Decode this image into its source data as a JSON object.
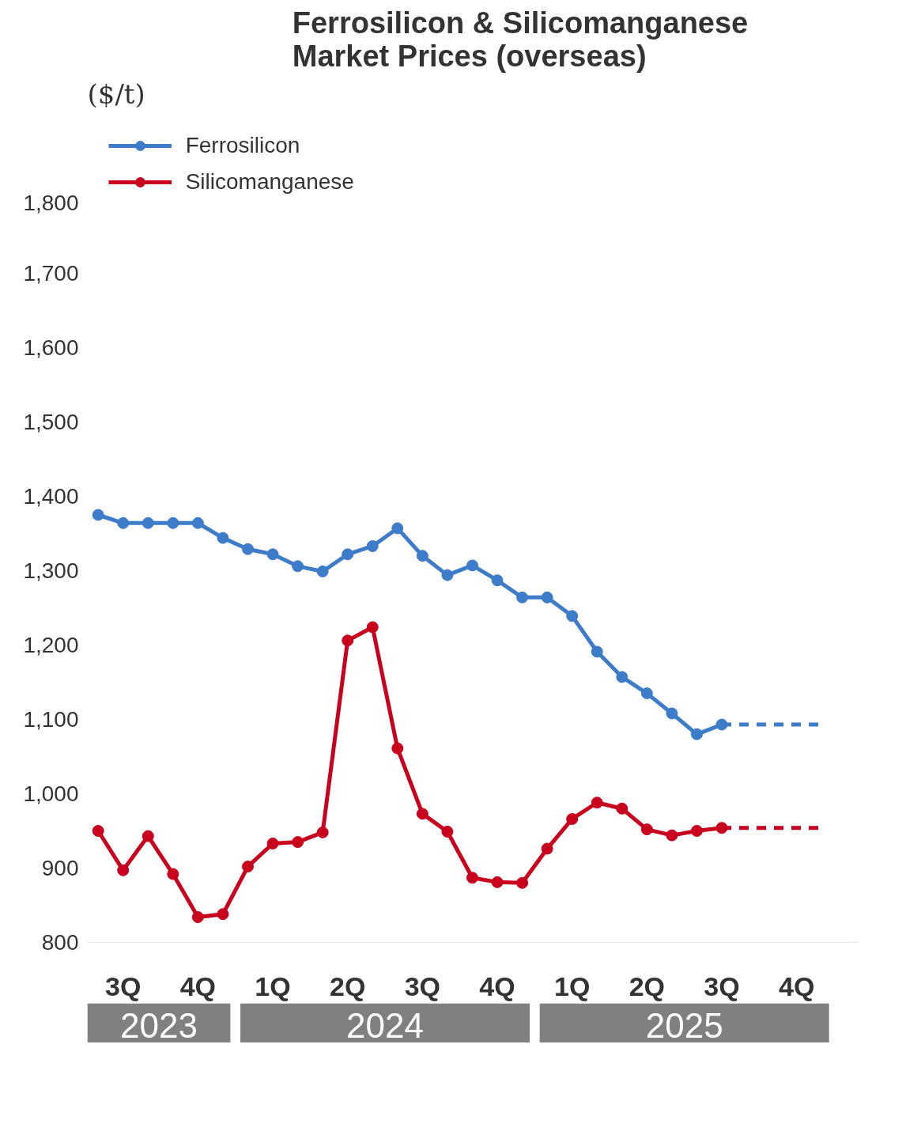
{
  "chart_data": {
    "type": "line",
    "title": "Ferrosilicon & Silicomanganese\nMarket Prices (overseas)",
    "ylabel": "($/t)",
    "x": [
      "2023-07",
      "2023-08",
      "2023-09",
      "2023-10",
      "2023-11",
      "2023-12",
      "2024-01",
      "2024-02",
      "2024-03",
      "2024-04",
      "2024-05",
      "2024-06",
      "2024-07",
      "2024-08",
      "2024-09",
      "2024-10",
      "2024-11",
      "2024-12",
      "2025-01",
      "2025-02",
      "2025-03",
      "2025-04",
      "2025-05",
      "2025-06",
      "2025-07",
      "2025-08"
    ],
    "series": [
      {
        "name": "Ferrosilicon",
        "color": "#3d7cc9",
        "values": [
          1375,
          1364,
          1364,
          1364,
          1364,
          1344,
          1329,
          1322,
          1306,
          1299,
          1322,
          1333,
          1357,
          1320,
          1294,
          1307,
          1287,
          1264,
          1264,
          1239,
          1191,
          1157,
          1135,
          1108,
          1080,
          1093
        ]
      },
      {
        "name": "Silicomanganese",
        "color": "#c8001e",
        "values": [
          950,
          897,
          943,
          892,
          834,
          838,
          902,
          933,
          935,
          948,
          1206,
          1224,
          1061,
          973,
          949,
          887,
          881,
          880,
          926,
          966,
          988,
          980,
          952,
          944,
          950,
          954
        ]
      },
      {
        "color": "#3d7cc9",
        "x": [
          "2025-08",
          "2025-12"
        ],
        "values": [
          1093,
          1093
        ],
        "line_style": "dashed",
        "marker": "none"
      },
      {
        "color": "#c8001e",
        "x": [
          "2025-08",
          "2025-12"
        ],
        "values": [
          954,
          954
        ],
        "line_style": "dashed",
        "marker": "none"
      }
    ],
    "marker": "circle",
    "line_style": "solid",
    "legend": "top left",
    "grid": false,
    "ylim": [
      800,
      1800
    ],
    "yticks": [
      {
        "value": 800,
        "label": "800"
      },
      {
        "value": 900,
        "label": "900"
      },
      {
        "value": 1000,
        "label": "1,000"
      },
      {
        "value": 1100,
        "label": "1,100"
      },
      {
        "value": 1200,
        "label": "1,200"
      },
      {
        "value": 1300,
        "label": "1,300"
      },
      {
        "value": 1400,
        "label": "1,400"
      },
      {
        "value": 1500,
        "label": "1,500"
      },
      {
        "value": 1600,
        "label": "1,600"
      },
      {
        "value": 1700,
        "label": "1,700"
      },
      {
        "value": 1800,
        "label": "1,800"
      }
    ],
    "xlim": [
      "2023-06-18",
      "2026-01-15"
    ],
    "xticks": [
      {
        "value": "2023-08",
        "label": "3Q"
      },
      {
        "value": "2023-11",
        "label": "4Q"
      },
      {
        "value": "2024-02",
        "label": "1Q"
      },
      {
        "value": "2024-05",
        "label": "2Q"
      },
      {
        "value": "2024-08",
        "label": "3Q"
      },
      {
        "value": "2024-11",
        "label": "4Q"
      },
      {
        "value": "2025-02",
        "label": "1Q"
      },
      {
        "value": "2025-05",
        "label": "2Q"
      },
      {
        "value": "2025-08",
        "label": "3Q"
      },
      {
        "value": "2025-11",
        "label": "4Q"
      }
    ],
    "annotations": [
      "2023",
      "2024",
      "2025"
    ]
  }
}
